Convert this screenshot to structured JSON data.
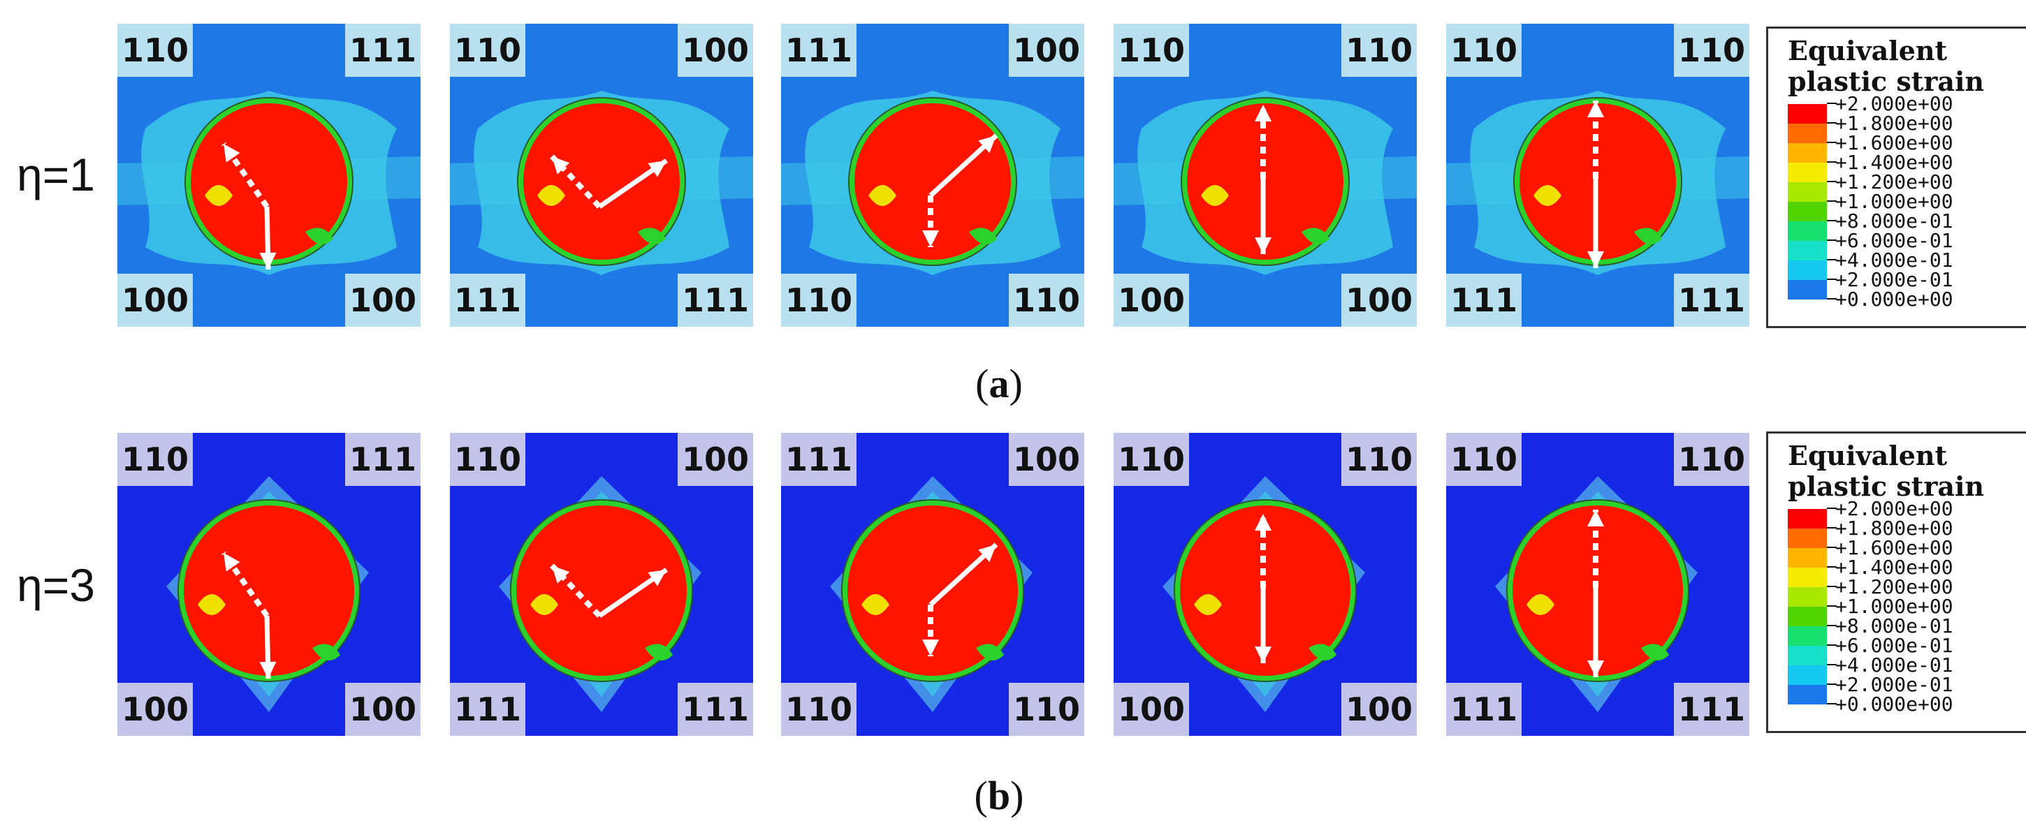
{
  "rows": [
    {
      "label": "η=1",
      "caption_letter": "a",
      "panels": [
        {
          "tl": "110",
          "tr": "111",
          "bl": "100",
          "br": "100"
        },
        {
          "tl": "110",
          "tr": "100",
          "bl": "111",
          "br": "111"
        },
        {
          "tl": "111",
          "tr": "100",
          "bl": "110",
          "br": "110"
        },
        {
          "tl": "110",
          "tr": "110",
          "bl": "100",
          "br": "100"
        },
        {
          "tl": "110",
          "tr": "110",
          "bl": "111",
          "br": "111"
        }
      ]
    },
    {
      "label": "η=3",
      "caption_letter": "b",
      "panels": [
        {
          "tl": "110",
          "tr": "111",
          "bl": "100",
          "br": "100"
        },
        {
          "tl": "110",
          "tr": "100",
          "bl": "111",
          "br": "111"
        },
        {
          "tl": "111",
          "tr": "100",
          "bl": "110",
          "br": "110"
        },
        {
          "tl": "110",
          "tr": "110",
          "bl": "100",
          "br": "100"
        },
        {
          "tl": "110",
          "tr": "110",
          "bl": "111",
          "br": "111"
        }
      ]
    }
  ],
  "legend": {
    "title_line1": "Equivalent",
    "title_line2": "plastic strain",
    "entries": [
      "+2.000e+00",
      "+1.800e+00",
      "+1.600e+00",
      "+1.400e+00",
      "+1.200e+00",
      "+1.000e+00",
      "+8.000e-01",
      "+6.000e-01",
      "+4.000e-01",
      "+2.000e-01",
      "+0.000e+00"
    ],
    "colors": [
      "#ff0000",
      "#ff6a00",
      "#ffb400",
      "#f4ec00",
      "#a8e800",
      "#4fd400",
      "#17e070",
      "#16e0c8",
      "#14c8f0",
      "#1a78e8",
      "#0000ff"
    ]
  },
  "colors": {
    "background_row_a": "#1e78e6",
    "background_row_b": "#1428e6",
    "cyan_zone": "#3cc8e8",
    "light_blue_zone": "#4aa0e8",
    "strain_high": "#ff1400",
    "strain_mid": "#2cd22c",
    "strain_yellow": "#f0e000",
    "arrow": "#ffffff"
  }
}
